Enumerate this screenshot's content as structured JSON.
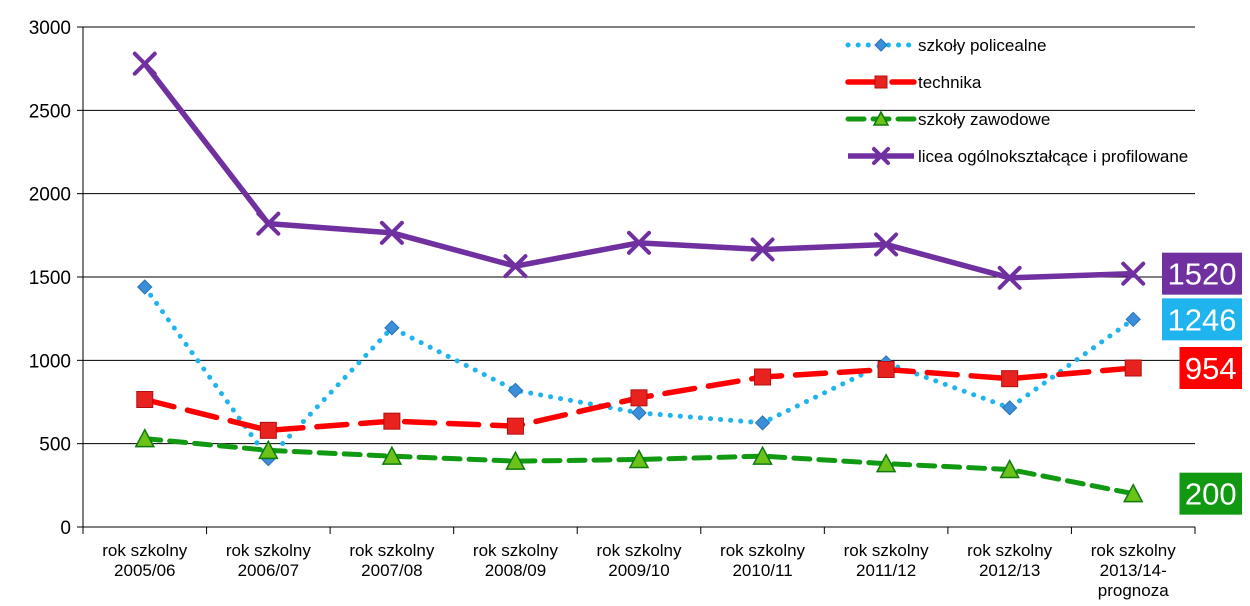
{
  "chart_data": {
    "type": "line",
    "title": "",
    "xlabel": "",
    "ylabel": "",
    "ylim": [
      0,
      3000
    ],
    "yticks": [
      0,
      500,
      1000,
      1500,
      2000,
      2500,
      3000
    ],
    "grid": true,
    "legend_position": "top-right",
    "categories": [
      [
        "rok szkolny",
        "2005/06"
      ],
      [
        "rok szkolny",
        "2006/07"
      ],
      [
        "rok szkolny",
        "2007/08"
      ],
      [
        "rok szkolny",
        "2008/09"
      ],
      [
        "rok szkolny",
        "2009/10"
      ],
      [
        "rok szkolny",
        "2010/11"
      ],
      [
        "rok szkolny",
        "2011/12"
      ],
      [
        "rok szkolny",
        "2012/13"
      ],
      [
        "rok szkolny",
        "2013/14-",
        "prognoza"
      ]
    ],
    "series": [
      {
        "name": "szkoły policealne",
        "color": "#1FB4EE",
        "marker_color": "#3A8FD8",
        "line_style": "dotted",
        "marker": "diamond",
        "values": [
          1440,
          410,
          1195,
          820,
          685,
          625,
          985,
          715,
          1246
        ],
        "end_label": "1246",
        "end_label_color": "#1FB4EE"
      },
      {
        "name": "technika",
        "color": "#FF0000",
        "marker_color": "#E8231F",
        "line_style": "dashed",
        "marker": "square",
        "values": [
          765,
          580,
          635,
          605,
          775,
          900,
          945,
          890,
          954
        ],
        "end_label": "954",
        "end_label_color": "#FF0000"
      },
      {
        "name": "szkoły zawodowe",
        "color": "#119A11",
        "marker_color": "#6BC31A",
        "line_style": "dashed",
        "marker": "triangle",
        "values": [
          530,
          460,
          425,
          395,
          405,
          425,
          380,
          345,
          200
        ],
        "end_label": "200",
        "end_label_color": "#119A11"
      },
      {
        "name": "licea ogólnokształcące i profilowane",
        "color": "#7030A0",
        "marker_color": "#7030A0",
        "line_style": "solid",
        "marker": "x",
        "values": [
          2780,
          1820,
          1765,
          1565,
          1705,
          1665,
          1695,
          1495,
          1520
        ],
        "end_label": "1520",
        "end_label_color": "#7030A0"
      }
    ]
  }
}
